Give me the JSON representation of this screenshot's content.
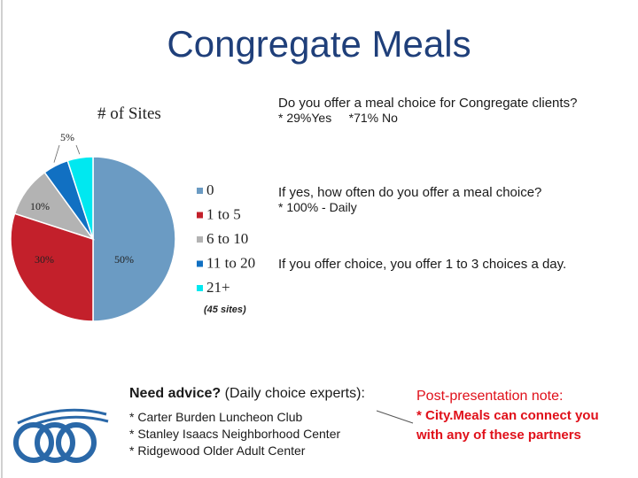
{
  "title": "Congregate Meals",
  "chart_data": {
    "type": "pie",
    "title": "# of Sites",
    "categories": [
      "0",
      "1 to 5",
      "6 to 10",
      "11 to 20",
      "21+"
    ],
    "values": [
      50,
      30,
      10,
      5,
      5
    ],
    "value_labels": [
      "50%",
      "30%",
      "10%",
      "5%",
      null
    ],
    "colors": [
      "#6b9bc3",
      "#c3202b",
      "#b3b3b3",
      "#1170c2",
      "#00e8f0"
    ],
    "note": "(45 sites)"
  },
  "questions": [
    {
      "question": "Do you offer a meal choice for Congregate clients?",
      "answer": "* 29%Yes     *71% No"
    },
    {
      "question": "If yes, how often do you offer a meal choice?",
      "answer": "* 100% - Daily"
    },
    {
      "question": "If you offer choice, you offer 1 to 3 choices a day."
    }
  ],
  "advice": {
    "heading": "Need advice?",
    "subheading": "(Daily choice experts):",
    "items": [
      "* Carter Burden Luncheon Club",
      "* Stanley Isaacs Neighborhood Center",
      "* Ridgewood Older Adult Center"
    ]
  },
  "post_note": {
    "heading": "Post-presentation note:",
    "body": "* City.Meals can connect you with any of these partners"
  }
}
